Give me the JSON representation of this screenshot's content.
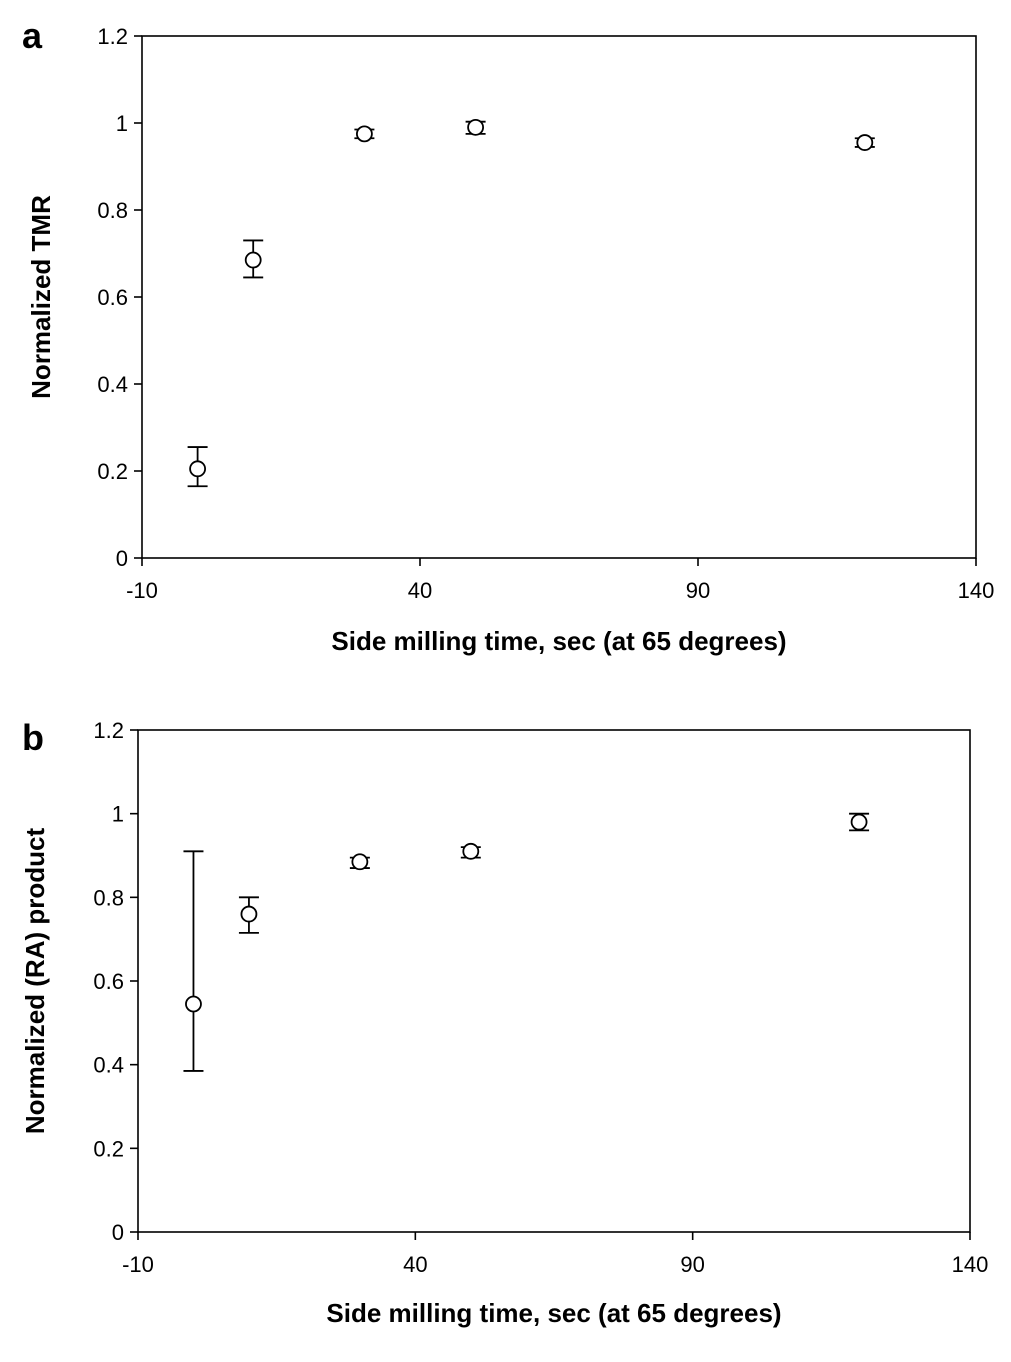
{
  "chart_data": [
    {
      "type": "scatter",
      "panel_label": "a",
      "xlabel": "Side milling time, sec (at 65 degrees)",
      "ylabel": "Normalized TMR",
      "xlim": [
        -10,
        140
      ],
      "ylim": [
        0,
        1.2
      ],
      "x_ticks": [
        "-10",
        "40",
        "90",
        "140"
      ],
      "y_ticks": [
        "0",
        "0.2",
        "0.4",
        "0.6",
        "0.8",
        "1",
        "1.2"
      ],
      "x_tick_values": [
        -10,
        40,
        90,
        140
      ],
      "y_tick_values": [
        0,
        0.2,
        0.4,
        0.6,
        0.8,
        1,
        1.2
      ],
      "points": [
        {
          "x": 0,
          "y": 0.205,
          "err_low": 0.165,
          "err_high": 0.255
        },
        {
          "x": 10,
          "y": 0.685,
          "err_low": 0.645,
          "err_high": 0.73
        },
        {
          "x": 30,
          "y": 0.975,
          "err_low": 0.965,
          "err_high": 0.985
        },
        {
          "x": 50,
          "y": 0.99,
          "err_low": 0.975,
          "err_high": 1.003
        },
        {
          "x": 120,
          "y": 0.955,
          "err_low": 0.945,
          "err_high": 0.965
        }
      ]
    },
    {
      "type": "scatter",
      "panel_label": "b",
      "xlabel": "Side milling time, sec (at 65 degrees)",
      "ylabel": "Normalized (RA) product",
      "xlim": [
        -10,
        140
      ],
      "ylim": [
        0,
        1.2
      ],
      "x_ticks": [
        "-10",
        "40",
        "90",
        "140"
      ],
      "y_ticks": [
        "0",
        "0.2",
        "0.4",
        "0.6",
        "0.8",
        "1",
        "1.2"
      ],
      "x_tick_values": [
        -10,
        40,
        90,
        140
      ],
      "y_tick_values": [
        0,
        0.2,
        0.4,
        0.6,
        0.8,
        1,
        1.2
      ],
      "points": [
        {
          "x": 0,
          "y": 0.545,
          "err_low": 0.385,
          "err_high": 0.91
        },
        {
          "x": 10,
          "y": 0.76,
          "err_low": 0.715,
          "err_high": 0.8
        },
        {
          "x": 30,
          "y": 0.885,
          "err_low": 0.87,
          "err_high": 0.895
        },
        {
          "x": 50,
          "y": 0.91,
          "err_low": 0.895,
          "err_high": 0.92
        },
        {
          "x": 120,
          "y": 0.98,
          "err_low": 0.96,
          "err_high": 1.0
        }
      ]
    }
  ]
}
